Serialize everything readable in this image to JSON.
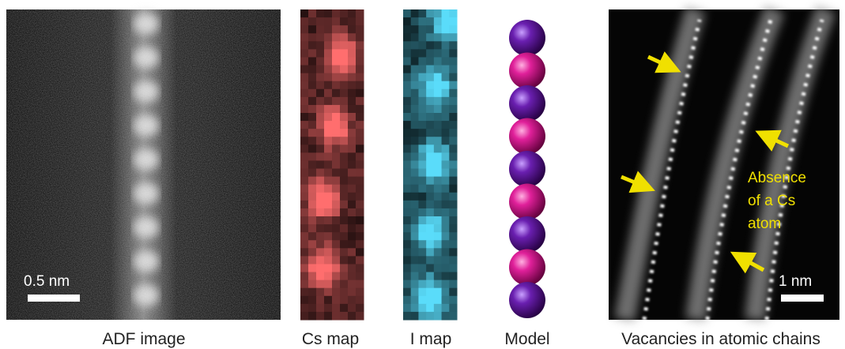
{
  "panels": [
    {
      "caption": "ADF image",
      "scale_bar": "0.5 nm"
    },
    {
      "caption": "Cs map"
    },
    {
      "caption": "I map"
    },
    {
      "caption": "Model"
    },
    {
      "caption": "Vacancies in atomic chains",
      "scale_bar": "1 nm",
      "annotation": [
        "Absence",
        "of a Cs",
        "atom"
      ]
    }
  ]
}
